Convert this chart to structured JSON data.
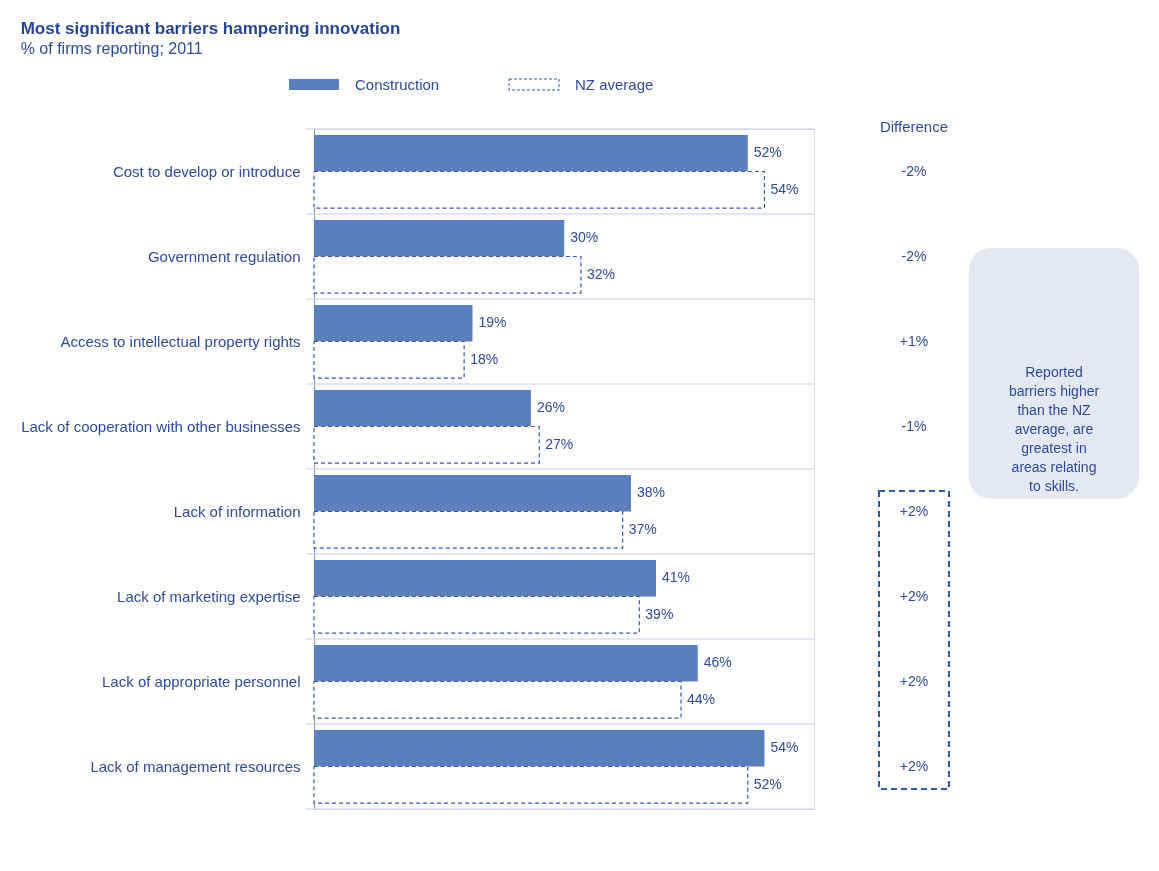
{
  "chart_data": {
    "type": "bar",
    "orientation": "horizontal",
    "title": "Most significant barriers hampering innovation",
    "subtitle": "% of firms reporting; 2011",
    "categories": [
      "Cost to develop or introduce",
      "Government regulation",
      "Access to intellectual property rights",
      "Lack of cooperation with other businesses",
      "Lack of information",
      "Lack of marketing expertise",
      "Lack of appropriate personnel",
      "Lack of management resources"
    ],
    "series": [
      {
        "name": "Construction",
        "color": "#5b7fbb",
        "values": [
          52,
          30,
          19,
          26,
          38,
          41,
          46,
          54
        ],
        "value_labels": [
          "52%",
          "30%",
          "19%",
          "26%",
          "38%",
          "41%",
          "46%",
          "54%"
        ]
      },
      {
        "name": "NZ average",
        "color": "#3558a8",
        "line_style": "dashed",
        "values": [
          54,
          32,
          18,
          27,
          37,
          39,
          44,
          52
        ],
        "value_labels": [
          "54%",
          "32%",
          "18%",
          "27%",
          "37%",
          "39%",
          "44%",
          "52%"
        ]
      }
    ],
    "annotations": [
      "Difference",
      "-2%",
      "-2%",
      "+1%",
      "-1%",
      "+2%",
      "+2%",
      "+2%",
      "+2%",
      "Reported barriers higher than the NZ average, are greatest in areas relating to skills."
    ],
    "legend": "top",
    "grid": "y"
  }
}
